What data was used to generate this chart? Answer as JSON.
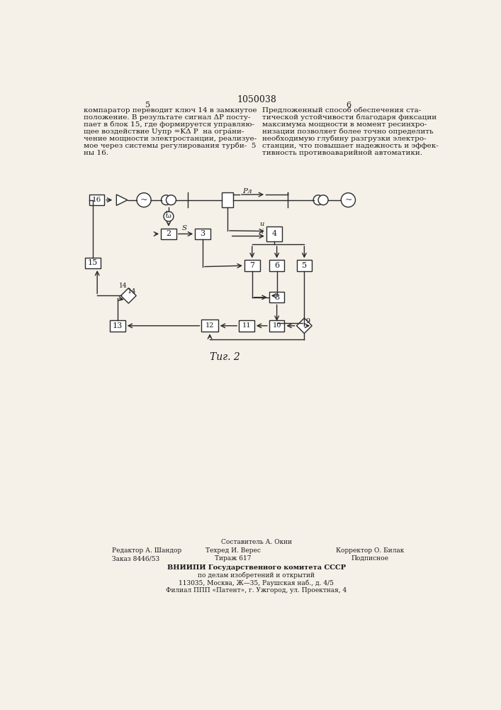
{
  "patent_number": "1050038",
  "page_left_num": "5",
  "page_right_num": "6",
  "left_text": "компаратор переводит ключ 14 в замкнутое положение. В результате сигнал ΔP поступает в блок 15, где формируется управляющее воздействие Uупр =KΔ P  на ограничение мощности электростанции, реализуемое через системы регулирования турбины 16.",
  "right_text": "Предложенный способ обеспечения статической устойчивости благодаря фиксации максимума мощности в момент ресинхронизации позволяет более точно определить необходимую глубину разгрузки электростанции, что повышает надежность и эффективность противоаварийной автоматики.",
  "fig_label": "Τиг. 2",
  "footer_line1": "Составитель А. Окни",
  "footer_line2_left": "Редактор А. Шандор",
  "footer_line2_mid": "Техред И. Верес",
  "footer_line2_right": "Корректор О. Билак",
  "footer_line3_left": "Заказ 8446/53",
  "footer_line3_mid": "Тираж 617",
  "footer_line3_right": "Подписное",
  "footer_vniip1": "ВНИИПИ Государственного комитета СССР",
  "footer_vniip2": "по делам изобретений и открытий",
  "footer_vniip3": "113035, Москва, Ж—35, Раушская наб., д. 4/5",
  "footer_vniip4": "Филиал ППП «Патент», г. Ужгород, ул. Проектная, 4",
  "bg_color": "#f5f0e8",
  "line_color": "#2a2a2a",
  "text_color": "#1a1a1a"
}
